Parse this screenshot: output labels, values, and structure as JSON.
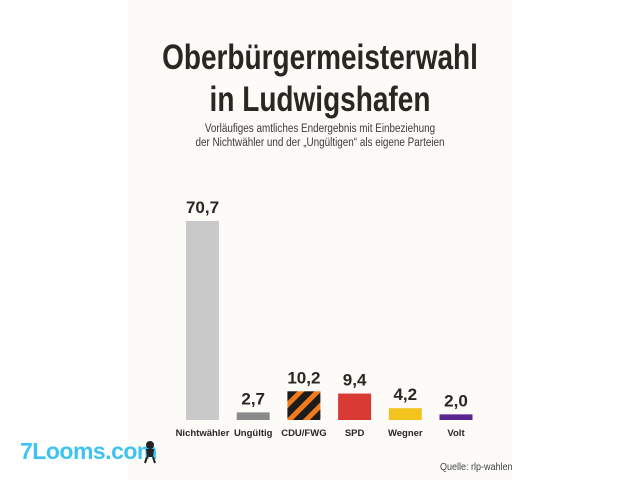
{
  "header": {
    "title_line1": "Oberbürgermeisterwahl",
    "title_line2": "in Ludwigshafen",
    "subtitle_line1": "Vorläufiges amtliches Endergebnis mit Einbeziehung",
    "subtitle_line2": "der Nichtwähler und der „Ungültigen“ als eigene Parteien"
  },
  "source": "Quelle: rlp-wahlen",
  "watermark": "7Looms.com",
  "colors": {
    "Nichtwähler": "#c9c9c9",
    "Ungültig": "#8a8a8a",
    "CDU/FWG_a": "#1c1c1c",
    "CDU/FWG_b": "#f07a1c",
    "SPD": "#d93a34",
    "Wegner": "#f3c31f",
    "Volt": "#5a2791",
    "text": "#2a2622",
    "watermark": "#3fc3f2"
  },
  "chart_data": {
    "type": "bar",
    "categories": [
      "Nichtwähler",
      "Ungültig",
      "CDU/FWG",
      "SPD",
      "Wegner",
      "Volt"
    ],
    "values": [
      70.7,
      2.7,
      10.2,
      9.4,
      4.2,
      2.0
    ],
    "value_labels": [
      "70,7",
      "2,7",
      "10,2",
      "9,4",
      "4,2",
      "2,0"
    ],
    "ylim": [
      0,
      70.7
    ],
    "grid": false,
    "legend": "none"
  }
}
